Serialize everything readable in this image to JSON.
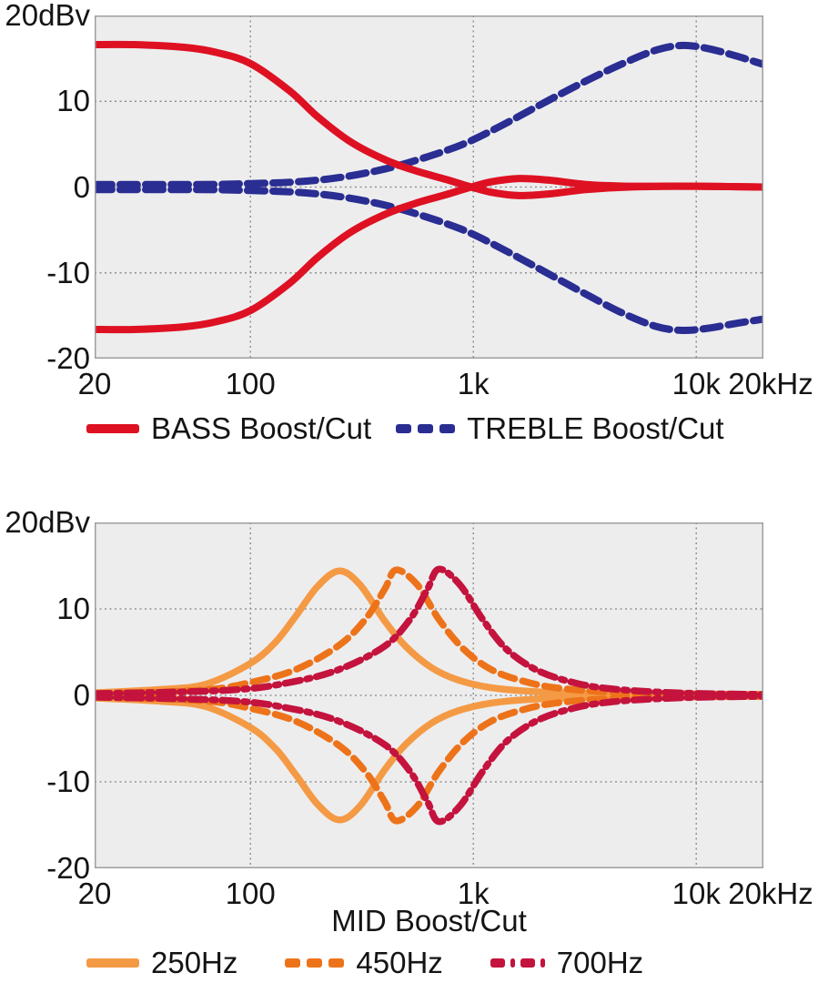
{
  "page": {
    "bg": "#ffffff",
    "text_color": "#141414"
  },
  "chart_data": [
    {
      "type": "line",
      "name": "bass-treble-boost-cut-response",
      "title": "",
      "xlabel": "",
      "ylabel": "",
      "y_unit": "dBv",
      "xscale": "log",
      "xlim": [
        20,
        20000
      ],
      "ylim": [
        -20,
        20
      ],
      "grid": true,
      "grid_x": [
        100,
        1000,
        10000
      ],
      "grid_y": [
        10,
        0,
        -10
      ],
      "x_ticks": [
        {
          "v": 20,
          "label": "20"
        },
        {
          "v": 100,
          "label": "100"
        },
        {
          "v": 1000,
          "label": "1k"
        },
        {
          "v": 10000,
          "label": "10k"
        },
        {
          "v": 20000,
          "label": "20kHz",
          "dx": 8
        }
      ],
      "y_ticks": [
        {
          "v": 20,
          "label": "20dBv"
        },
        {
          "v": 10,
          "label": "10"
        },
        {
          "v": 0,
          "label": "0"
        },
        {
          "v": -10,
          "label": "-10"
        },
        {
          "v": -20,
          "label": "-20"
        }
      ],
      "style": {
        "plot_bg": "#EDEDEE",
        "grid_color": "#858585",
        "border_color": "#9E9E9E"
      },
      "series": [
        {
          "name": "treble-boost",
          "color": "#2A2D92",
          "width": 8,
          "dash": [
            19,
            9
          ],
          "points": [
            [
              20,
              0.3
            ],
            [
              60,
              0.3
            ],
            [
              100,
              0.4
            ],
            [
              160,
              0.6
            ],
            [
              250,
              1.1
            ],
            [
              400,
              2.1
            ],
            [
              600,
              3.4
            ],
            [
              900,
              5.0
            ],
            [
              1300,
              7.0
            ],
            [
              2000,
              9.6
            ],
            [
              3000,
              12.0
            ],
            [
              4500,
              14.2
            ],
            [
              6500,
              15.9
            ],
            [
              8500,
              16.5
            ],
            [
              11000,
              16.2
            ],
            [
              15000,
              15.3
            ],
            [
              20000,
              14.3
            ]
          ]
        },
        {
          "name": "treble-cut",
          "color": "#2A2D92",
          "width": 8,
          "dash": [
            19,
            9
          ],
          "points": [
            [
              20,
              -0.3
            ],
            [
              60,
              -0.3
            ],
            [
              100,
              -0.4
            ],
            [
              160,
              -0.6
            ],
            [
              250,
              -1.1
            ],
            [
              400,
              -2.1
            ],
            [
              600,
              -3.4
            ],
            [
              900,
              -5.0
            ],
            [
              1300,
              -7.0
            ],
            [
              2000,
              -9.6
            ],
            [
              3000,
              -12.1
            ],
            [
              4500,
              -14.5
            ],
            [
              6500,
              -16.2
            ],
            [
              8500,
              -16.7
            ],
            [
              11000,
              -16.5
            ],
            [
              15000,
              -15.9
            ],
            [
              20000,
              -15.4
            ]
          ]
        },
        {
          "name": "bass-boost",
          "color": "#DE1122",
          "width": 8,
          "dash": null,
          "points": [
            [
              20,
              16.6
            ],
            [
              30,
              16.6
            ],
            [
              50,
              16.3
            ],
            [
              70,
              15.7
            ],
            [
              100,
              14.4
            ],
            [
              150,
              11.2
            ],
            [
              200,
              8.2
            ],
            [
              280,
              5.3
            ],
            [
              400,
              3.2
            ],
            [
              550,
              1.9
            ],
            [
              750,
              0.9
            ],
            [
              950,
              0.1
            ],
            [
              1200,
              -0.6
            ],
            [
              1600,
              -1.0
            ],
            [
              2200,
              -0.8
            ],
            [
              3200,
              -0.3
            ],
            [
              5000,
              0.0
            ],
            [
              9000,
              0.1
            ],
            [
              20000,
              0.0
            ]
          ]
        },
        {
          "name": "bass-cut",
          "color": "#DE1122",
          "width": 8,
          "dash": null,
          "points": [
            [
              20,
              -16.6
            ],
            [
              30,
              -16.6
            ],
            [
              50,
              -16.3
            ],
            [
              70,
              -15.7
            ],
            [
              100,
              -14.4
            ],
            [
              150,
              -11.2
            ],
            [
              200,
              -8.2
            ],
            [
              280,
              -5.3
            ],
            [
              400,
              -3.2
            ],
            [
              550,
              -1.9
            ],
            [
              750,
              -0.9
            ],
            [
              950,
              -0.1
            ],
            [
              1200,
              0.6
            ],
            [
              1600,
              1.0
            ],
            [
              2200,
              0.8
            ],
            [
              3200,
              0.3
            ],
            [
              5000,
              0.1
            ],
            [
              9000,
              0.1
            ],
            [
              20000,
              0.0
            ]
          ]
        }
      ],
      "legend": [
        {
          "label": "BASS Boost/Cut",
          "color": "#DE1122",
          "style": "solid"
        },
        {
          "label": "TREBLE Boost/Cut",
          "color": "#2A2D92",
          "style": "dashes"
        }
      ],
      "legend_position": "bottom"
    },
    {
      "type": "line",
      "name": "mid-boost-cut-response",
      "title": "",
      "xlabel": "MID Boost/Cut",
      "ylabel": "",
      "y_unit": "dBv",
      "xscale": "log",
      "xlim": [
        20,
        20000
      ],
      "ylim": [
        -20,
        20
      ],
      "grid": true,
      "grid_x": [
        100,
        1000,
        10000
      ],
      "grid_y": [
        10,
        0,
        -10
      ],
      "x_ticks": [
        {
          "v": 20,
          "label": "20"
        },
        {
          "v": 100,
          "label": "100"
        },
        {
          "v": 1000,
          "label": "1k"
        },
        {
          "v": 10000,
          "label": "10k"
        },
        {
          "v": 20000,
          "label": "20kHz",
          "dx": 8
        }
      ],
      "y_ticks": [
        {
          "v": 20,
          "label": "20dBv"
        },
        {
          "v": 10,
          "label": "10"
        },
        {
          "v": 0,
          "label": "0"
        },
        {
          "v": -10,
          "label": "-10"
        },
        {
          "v": -20,
          "label": "-20"
        }
      ],
      "style": {
        "plot_bg": "#EDEDEE",
        "grid_color": "#858585",
        "border_color": "#9E9E9E"
      },
      "series": [
        {
          "name": "mid-250hz-boost",
          "color": "#F49A45",
          "width": 7.5,
          "dash": null,
          "points": [
            [
              20,
              0.3
            ],
            [
              40,
              0.7
            ],
            [
              63,
              1.3
            ],
            [
              100,
              3.7
            ],
            [
              130,
              6.2
            ],
            [
              160,
              9.2
            ],
            [
              200,
              12.6
            ],
            [
              250,
              14.4
            ],
            [
              310,
              12.8
            ],
            [
              400,
              8.6
            ],
            [
              500,
              5.6
            ],
            [
              650,
              3.2
            ],
            [
              850,
              1.8
            ],
            [
              1200,
              0.9
            ],
            [
              2000,
              0.4
            ],
            [
              4000,
              0.2
            ],
            [
              20000,
              0.1
            ]
          ]
        },
        {
          "name": "mid-250hz-cut",
          "color": "#F49A45",
          "width": 7.5,
          "dash": null,
          "points": [
            [
              20,
              -0.3
            ],
            [
              40,
              -0.7
            ],
            [
              63,
              -1.3
            ],
            [
              100,
              -3.7
            ],
            [
              130,
              -6.2
            ],
            [
              160,
              -9.2
            ],
            [
              200,
              -12.6
            ],
            [
              250,
              -14.4
            ],
            [
              310,
              -12.8
            ],
            [
              400,
              -8.6
            ],
            [
              500,
              -5.6
            ],
            [
              650,
              -3.2
            ],
            [
              850,
              -1.8
            ],
            [
              1200,
              -0.9
            ],
            [
              2000,
              -0.4
            ],
            [
              4000,
              -0.2
            ],
            [
              20000,
              -0.1
            ]
          ]
        },
        {
          "name": "mid-450hz-boost",
          "color": "#ED731A",
          "width": 7.5,
          "dash": [
            16,
            9
          ],
          "points": [
            [
              20,
              0.2
            ],
            [
              60,
              0.6
            ],
            [
              100,
              1.5
            ],
            [
              160,
              3.0
            ],
            [
              250,
              5.8
            ],
            [
              330,
              8.9
            ],
            [
              400,
              12.3
            ],
            [
              450,
              14.5
            ],
            [
              560,
              12.8
            ],
            [
              700,
              8.8
            ],
            [
              900,
              5.4
            ],
            [
              1200,
              3.0
            ],
            [
              1700,
              1.6
            ],
            [
              2500,
              0.8
            ],
            [
              5000,
              0.3
            ],
            [
              20000,
              0.1
            ]
          ]
        },
        {
          "name": "mid-450hz-cut",
          "color": "#ED731A",
          "width": 7.5,
          "dash": [
            16,
            9
          ],
          "points": [
            [
              20,
              -0.2
            ],
            [
              60,
              -0.6
            ],
            [
              100,
              -1.5
            ],
            [
              160,
              -3.0
            ],
            [
              250,
              -5.8
            ],
            [
              330,
              -8.9
            ],
            [
              400,
              -12.3
            ],
            [
              450,
              -14.5
            ],
            [
              560,
              -12.8
            ],
            [
              700,
              -8.8
            ],
            [
              900,
              -5.4
            ],
            [
              1200,
              -3.0
            ],
            [
              1700,
              -1.6
            ],
            [
              2500,
              -0.8
            ],
            [
              5000,
              -0.3
            ],
            [
              20000,
              -0.1
            ]
          ]
        },
        {
          "name": "mid-700hz-boost",
          "color": "#C4133D",
          "width": 7.5,
          "dash": [
            17,
            7,
            4,
            7
          ],
          "points": [
            [
              20,
              0.2
            ],
            [
              80,
              0.6
            ],
            [
              150,
              1.5
            ],
            [
              250,
              3.0
            ],
            [
              400,
              5.7
            ],
            [
              520,
              8.8
            ],
            [
              620,
              12.2
            ],
            [
              700,
              14.6
            ],
            [
              870,
              12.8
            ],
            [
              1100,
              8.8
            ],
            [
              1400,
              5.4
            ],
            [
              1900,
              3.0
            ],
            [
              2700,
              1.6
            ],
            [
              4000,
              0.8
            ],
            [
              8000,
              0.3
            ],
            [
              20000,
              0.1
            ]
          ]
        },
        {
          "name": "mid-700hz-cut",
          "color": "#C4133D",
          "width": 7.5,
          "dash": [
            17,
            7,
            4,
            7
          ],
          "points": [
            [
              20,
              -0.2
            ],
            [
              80,
              -0.6
            ],
            [
              150,
              -1.5
            ],
            [
              250,
              -3.0
            ],
            [
              400,
              -5.7
            ],
            [
              520,
              -8.8
            ],
            [
              620,
              -12.2
            ],
            [
              700,
              -14.6
            ],
            [
              870,
              -12.8
            ],
            [
              1100,
              -8.8
            ],
            [
              1400,
              -5.4
            ],
            [
              1900,
              -3.0
            ],
            [
              2700,
              -1.6
            ],
            [
              4000,
              -0.8
            ],
            [
              8000,
              -0.3
            ],
            [
              20000,
              -0.1
            ]
          ]
        }
      ],
      "legend": [
        {
          "label": "250Hz",
          "color": "#F49A45",
          "style": "solid"
        },
        {
          "label": "450Hz",
          "color": "#ED731A",
          "style": "dashes"
        },
        {
          "label": "700Hz",
          "color": "#C4133D",
          "style": "dashdot"
        }
      ],
      "legend_position": "bottom"
    }
  ]
}
